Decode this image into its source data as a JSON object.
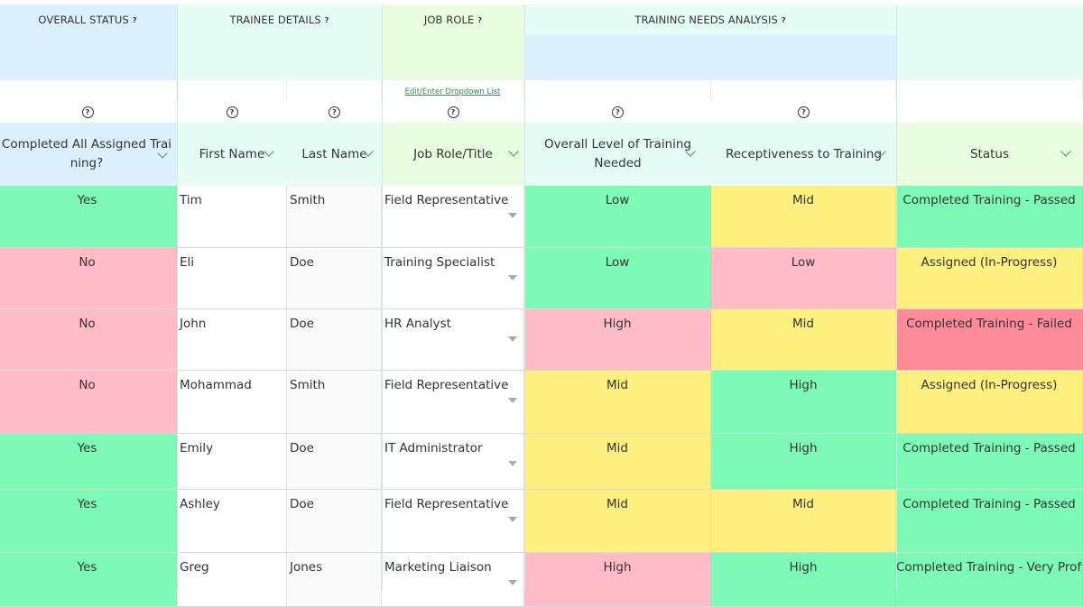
{
  "colors": {
    "green": "#7dfab6",
    "pink": "#ffbcc6",
    "yellow": "#fdf07f",
    "red": "#ff8a98",
    "white": "#ffffff",
    "offwhite": "#fafafa"
  },
  "groups": [
    {
      "label": "OVERALL STATUS",
      "help": "?"
    },
    {
      "label": "TRAINEE DETAILS",
      "help": "?"
    },
    {
      "label": "JOB ROLE",
      "help": "?"
    },
    {
      "label": "TRAINING NEEDS ANALYSIS",
      "help": "?"
    }
  ],
  "edit_dropdown_link": "Edit/Enter Dropdown List",
  "help_glyph": "?",
  "columns": [
    {
      "label": "Completed All Assigned Training?"
    },
    {
      "label": "First Name"
    },
    {
      "label": "Last Name"
    },
    {
      "label": "Job Role/Title"
    },
    {
      "label": "Overall Level of Training Needed"
    },
    {
      "label": "Receptiveness to Training"
    },
    {
      "label": "Status"
    }
  ],
  "rows": [
    {
      "completed": "Yes",
      "first": "Tim",
      "last": "Smith",
      "role": "Field Representative",
      "level": "Low",
      "recept": "Mid",
      "status": "Completed Training - Passed"
    },
    {
      "completed": "No",
      "first": "Eli",
      "last": "Doe",
      "role": "Training Specialist",
      "level": "Low",
      "recept": "Low",
      "status": "Assigned (In-Progress)"
    },
    {
      "completed": "No",
      "first": "John",
      "last": "Doe",
      "role": "HR Analyst",
      "level": "High",
      "recept": "Mid",
      "status": "Completed Training - Failed"
    },
    {
      "completed": "No",
      "first": "Mohammad",
      "last": "Smith",
      "role": "Field Representative",
      "level": "Mid",
      "recept": "High",
      "status": "Assigned (In-Progress)"
    },
    {
      "completed": "Yes",
      "first": "Emily",
      "last": "Doe",
      "role": "IT Administrator",
      "level": "Mid",
      "recept": "High",
      "status": "Completed Training - Passed"
    },
    {
      "completed": "Yes",
      "first": "Ashley",
      "last": "Doe",
      "role": "Field Representative",
      "level": "Mid",
      "recept": "Mid",
      "status": "Completed Training - Passed"
    },
    {
      "completed": "Yes",
      "first": "Greg",
      "last": "Jones",
      "role": "Marketing Liaison",
      "level": "High",
      "recept": "High",
      "status": "Completed Training - Very Proficient"
    }
  ]
}
